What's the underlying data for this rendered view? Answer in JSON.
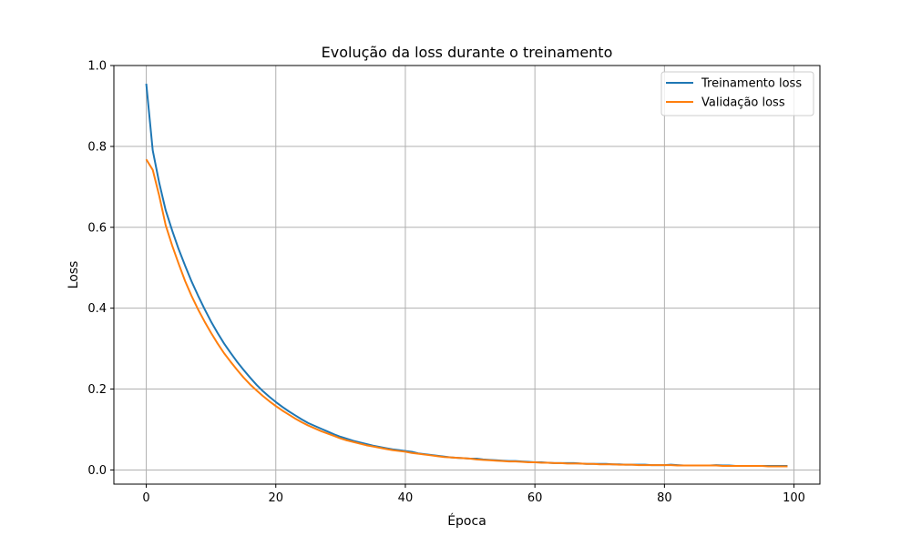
{
  "chart_data": {
    "type": "line",
    "title": "Evolução da loss durante o treinamento",
    "xlabel": "Época",
    "ylabel": "Loss",
    "xlim": [
      -5,
      104
    ],
    "ylim": [
      -0.035,
      1.0
    ],
    "xticks": [
      0,
      20,
      40,
      60,
      80,
      100
    ],
    "yticks": [
      0.0,
      0.2,
      0.4,
      0.6,
      0.8,
      1.0
    ],
    "xtick_labels": [
      "0",
      "20",
      "40",
      "60",
      "80",
      "100"
    ],
    "ytick_labels": [
      "0.0",
      "0.2",
      "0.4",
      "0.6",
      "0.8",
      "1.0"
    ],
    "grid": true,
    "legend_position": "top-right",
    "x": [
      0,
      1,
      2,
      3,
      4,
      5,
      6,
      7,
      8,
      9,
      10,
      11,
      12,
      13,
      14,
      15,
      16,
      17,
      18,
      19,
      20,
      21,
      22,
      23,
      24,
      25,
      26,
      27,
      28,
      29,
      30,
      31,
      32,
      33,
      34,
      35,
      36,
      37,
      38,
      39,
      40,
      41,
      42,
      43,
      44,
      45,
      46,
      47,
      48,
      49,
      50,
      51,
      52,
      53,
      54,
      55,
      56,
      57,
      58,
      59,
      60,
      61,
      62,
      63,
      64,
      65,
      66,
      67,
      68,
      69,
      70,
      71,
      72,
      73,
      74,
      75,
      76,
      77,
      78,
      79,
      80,
      81,
      82,
      83,
      84,
      85,
      86,
      87,
      88,
      89,
      90,
      91,
      92,
      93,
      94,
      95,
      96,
      97,
      98,
      99
    ],
    "series": [
      {
        "name": "Treinamento loss",
        "color": "#1f77b4",
        "values": [
          0.955,
          0.79,
          0.71,
          0.642,
          0.592,
          0.546,
          0.505,
          0.466,
          0.431,
          0.398,
          0.367,
          0.339,
          0.313,
          0.29,
          0.268,
          0.248,
          0.229,
          0.211,
          0.195,
          0.181,
          0.168,
          0.156,
          0.145,
          0.135,
          0.125,
          0.116,
          0.109,
          0.102,
          0.095,
          0.088,
          0.082,
          0.077,
          0.072,
          0.068,
          0.064,
          0.06,
          0.057,
          0.054,
          0.051,
          0.049,
          0.047,
          0.045,
          0.041,
          0.039,
          0.037,
          0.035,
          0.033,
          0.031,
          0.03,
          0.029,
          0.028,
          0.028,
          0.026,
          0.025,
          0.024,
          0.023,
          0.022,
          0.022,
          0.021,
          0.02,
          0.019,
          0.019,
          0.018,
          0.017,
          0.017,
          0.017,
          0.017,
          0.016,
          0.015,
          0.015,
          0.015,
          0.015,
          0.014,
          0.014,
          0.013,
          0.013,
          0.013,
          0.013,
          0.012,
          0.012,
          0.012,
          0.013,
          0.012,
          0.011,
          0.011,
          0.011,
          0.011,
          0.011,
          0.012,
          0.011,
          0.011,
          0.01,
          0.01,
          0.01,
          0.01,
          0.01,
          0.01,
          0.01,
          0.01,
          0.01
        ]
      },
      {
        "name": "Validação loss",
        "color": "#ff7f0e",
        "values": [
          0.768,
          0.742,
          0.678,
          0.605,
          0.555,
          0.51,
          0.467,
          0.43,
          0.397,
          0.367,
          0.339,
          0.313,
          0.289,
          0.268,
          0.248,
          0.229,
          0.212,
          0.197,
          0.183,
          0.17,
          0.158,
          0.147,
          0.137,
          0.127,
          0.118,
          0.11,
          0.103,
          0.096,
          0.09,
          0.084,
          0.078,
          0.073,
          0.069,
          0.065,
          0.061,
          0.058,
          0.055,
          0.052,
          0.049,
          0.047,
          0.045,
          0.042,
          0.04,
          0.038,
          0.036,
          0.034,
          0.032,
          0.031,
          0.03,
          0.029,
          0.028,
          0.026,
          0.025,
          0.024,
          0.023,
          0.022,
          0.021,
          0.021,
          0.02,
          0.019,
          0.019,
          0.018,
          0.018,
          0.017,
          0.017,
          0.016,
          0.016,
          0.016,
          0.015,
          0.015,
          0.014,
          0.014,
          0.014,
          0.013,
          0.013,
          0.013,
          0.012,
          0.012,
          0.012,
          0.012,
          0.012,
          0.012,
          0.011,
          0.011,
          0.011,
          0.011,
          0.011,
          0.011,
          0.011,
          0.01,
          0.01,
          0.01,
          0.01,
          0.01,
          0.01,
          0.01,
          0.009,
          0.009,
          0.009,
          0.009
        ]
      }
    ]
  }
}
